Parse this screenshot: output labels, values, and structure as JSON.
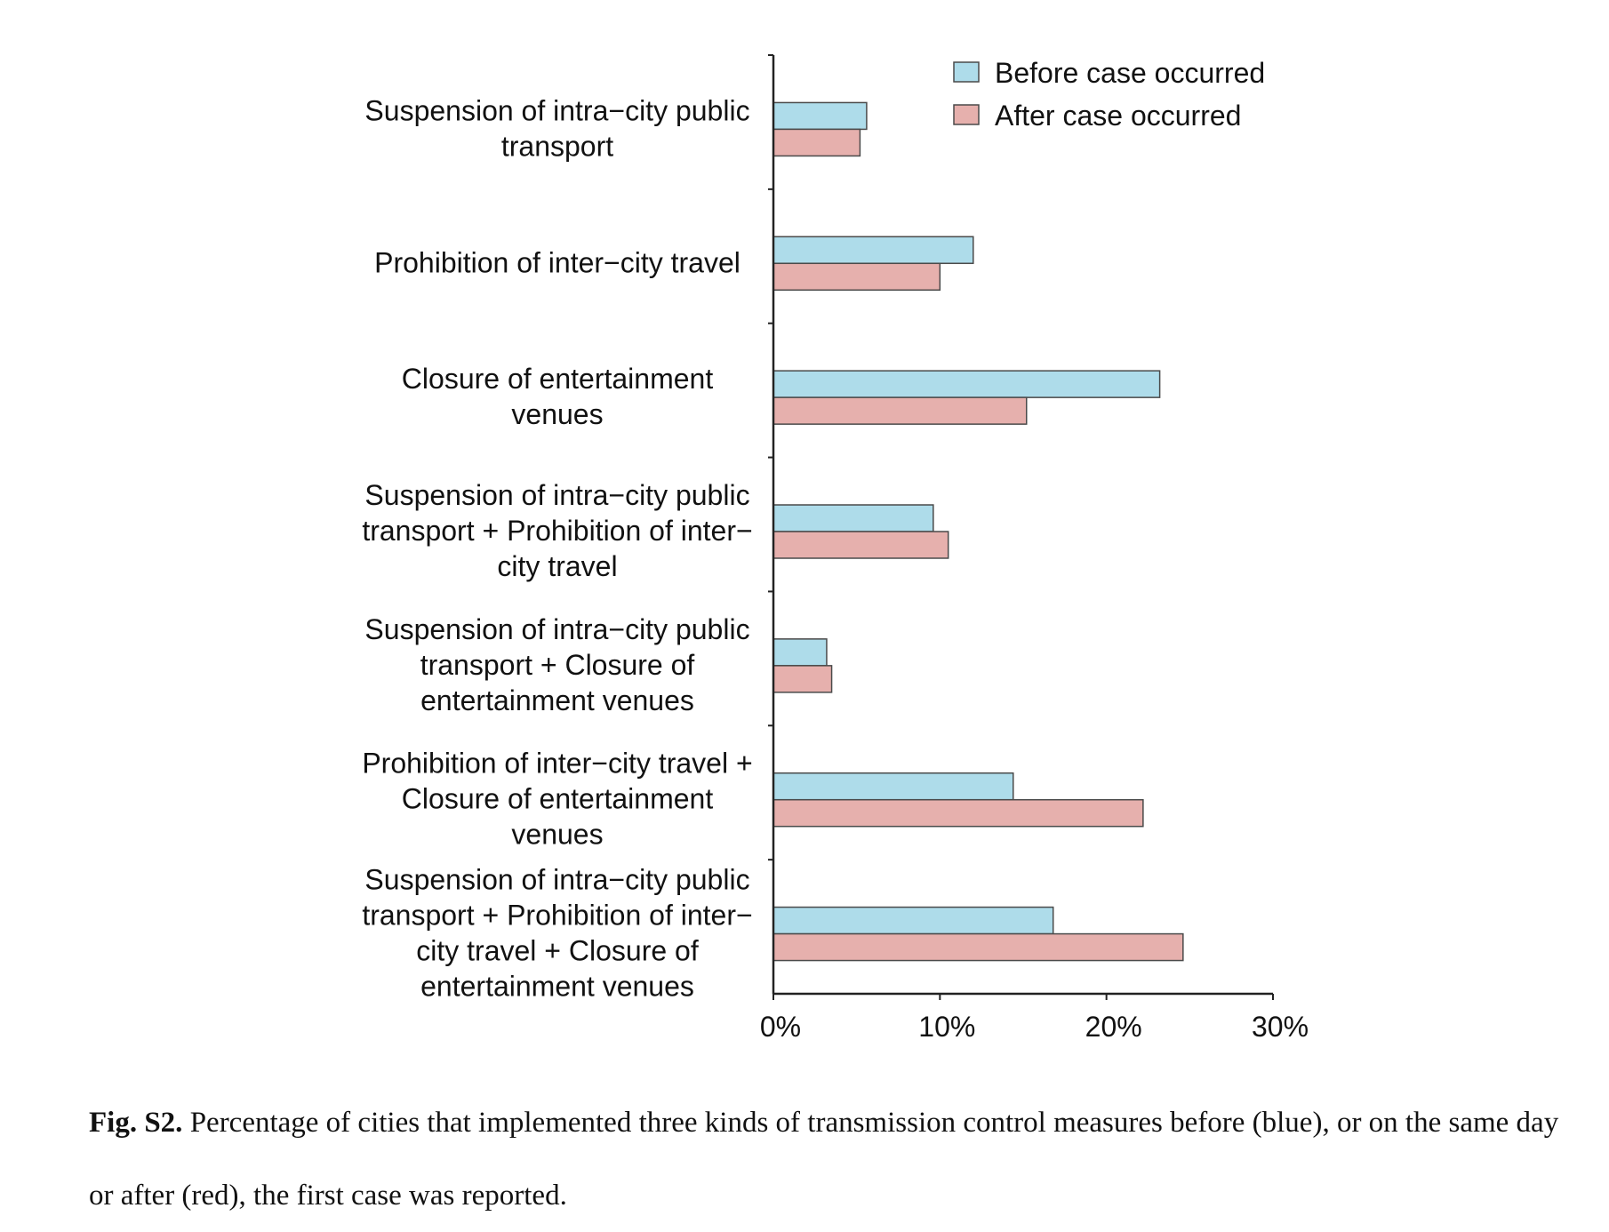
{
  "chart_data": {
    "type": "bar",
    "orientation": "horizontal",
    "categories": [
      [
        "Suspension of intra−city public",
        "transport"
      ],
      [
        "Prohibition of inter−city travel"
      ],
      [
        "Closure of entertainment",
        "venues"
      ],
      [
        "Suspension of intra−city public",
        "transport + Prohibition of inter−",
        "city travel"
      ],
      [
        "Suspension of intra−city public",
        "transport + Closure of",
        "entertainment venues"
      ],
      [
        "Prohibition of inter−city travel +",
        "Closure of entertainment",
        "venues"
      ],
      [
        "Suspension of intra−city public",
        "transport + Prohibition of inter−",
        "city travel + Closure of",
        "entertainment venues"
      ]
    ],
    "series": [
      {
        "name": "Before case occurred",
        "color": "#aedcea",
        "values": [
          5.6,
          12.0,
          23.2,
          9.6,
          3.2,
          14.4,
          16.8
        ]
      },
      {
        "name": "After case occurred",
        "color": "#e6b0ad",
        "values": [
          5.2,
          10.0,
          15.2,
          10.5,
          3.5,
          22.2,
          24.6
        ]
      }
    ],
    "xlim": [
      0,
      30
    ],
    "xticks": [
      0,
      10,
      20,
      30
    ],
    "xtick_labels": [
      "0%",
      "10%",
      "20%",
      "30%"
    ],
    "legend_position": "top-right",
    "bar_edge_color": "#4a4a4a",
    "axis_color": "#222222"
  },
  "caption": {
    "label": "Fig. S2.",
    "text": " Percentage of cities that implemented three kinds of transmission control measures before (blue), or on the same day or after (red), the first case was reported."
  }
}
